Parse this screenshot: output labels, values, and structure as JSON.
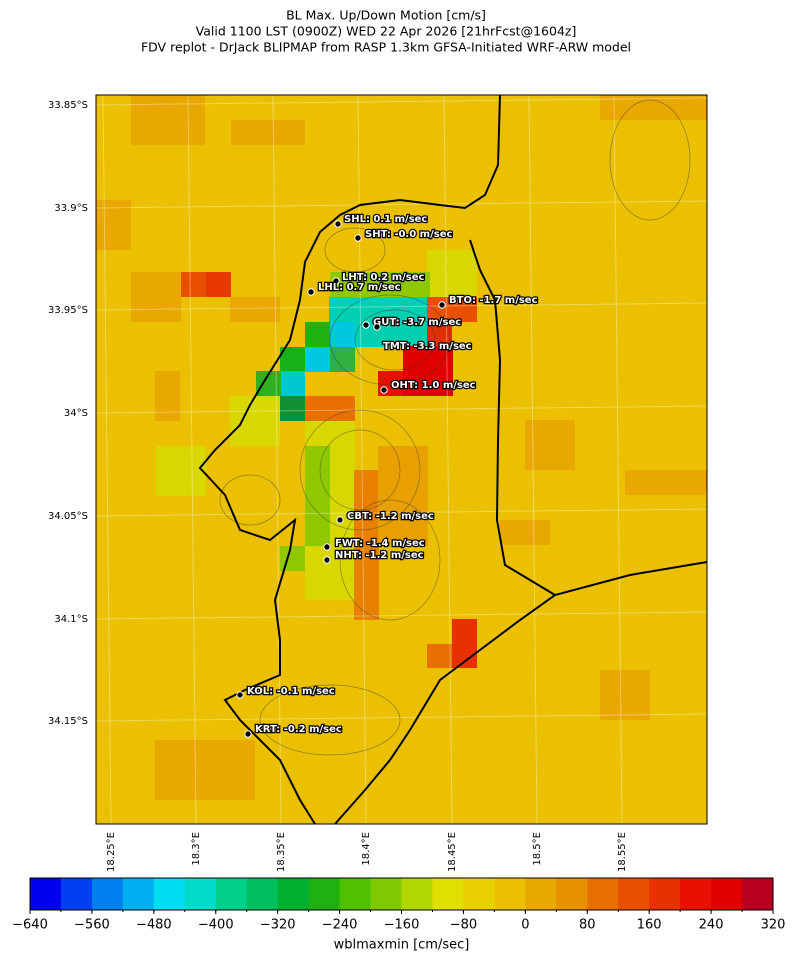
{
  "title": [
    "BL Max. Up/Down Motion [cm/s]",
    "Valid 1100 LST (0900Z) WED 22 Apr 2026 [21hrFcst@1604z]",
    "FDV replot - DrJack BLIPMAP from RASP 1.3km GFSA-Initiated WRF-ARW model"
  ],
  "map": {
    "lat_labels": [
      "33.85°S",
      "33.9°S",
      "33.95°S",
      "34°S",
      "34.05°S",
      "34.1°S",
      "34.15°S"
    ],
    "lon_labels": [
      "18.25°E",
      "18.3°E",
      "18.35°E",
      "18.4°E",
      "18.45°E",
      "18.5°E",
      "18.55°E"
    ],
    "stations": [
      "SHL: 0.1 m/sec",
      "SHT: -0.0 m/sec",
      "LHT: 0.2 m/sec",
      "LHL: 0.7 m/sec",
      "BTO: -1.7 m/sec",
      "GUT: -3.7 m/sec",
      "TMT: -3.3 m/sec",
      "OHT: 1.0 m/sec",
      "CBT: -1.2 m/sec",
      "FWT: -1.4 m/sec",
      "NHT: -1.2 m/sec",
      "KOL: -0.1 m/sec",
      "KRT: -0.2 m/sec"
    ]
  },
  "colorbar": {
    "label": "wblmaxmin [cm/sec]",
    "lim": [
      -640,
      320
    ],
    "levels": [
      -640,
      -600,
      -560,
      -520,
      -480,
      -440,
      -400,
      -360,
      -320,
      -280,
      -240,
      -200,
      -160,
      -120,
      -80,
      -40,
      0,
      40,
      80,
      120,
      160,
      200,
      240,
      280,
      320
    ],
    "colors": [
      "#0000f0",
      "#0040f0",
      "#0080f0",
      "#00b0f0",
      "#00dcf0",
      "#00dcc8",
      "#00d08c",
      "#00c060",
      "#00b030",
      "#20b010",
      "#50c000",
      "#80c800",
      "#b0d800",
      "#e0e000",
      "#e8d000",
      "#ecc000",
      "#e8a800",
      "#e89000",
      "#e87000",
      "#e85000",
      "#e83000",
      "#e81000",
      "#e00000",
      "#b80020"
    ],
    "ticks": [
      {
        "value": -640,
        "label": "−640"
      },
      {
        "value": -560,
        "label": "−560"
      },
      {
        "value": -480,
        "label": "−480"
      },
      {
        "value": -400,
        "label": "−400"
      },
      {
        "value": -320,
        "label": "−320"
      },
      {
        "value": -240,
        "label": "−240"
      },
      {
        "value": -160,
        "label": "−160"
      },
      {
        "value": -80,
        "label": "−80"
      },
      0,
      80,
      160,
      240,
      320
    ]
  }
}
